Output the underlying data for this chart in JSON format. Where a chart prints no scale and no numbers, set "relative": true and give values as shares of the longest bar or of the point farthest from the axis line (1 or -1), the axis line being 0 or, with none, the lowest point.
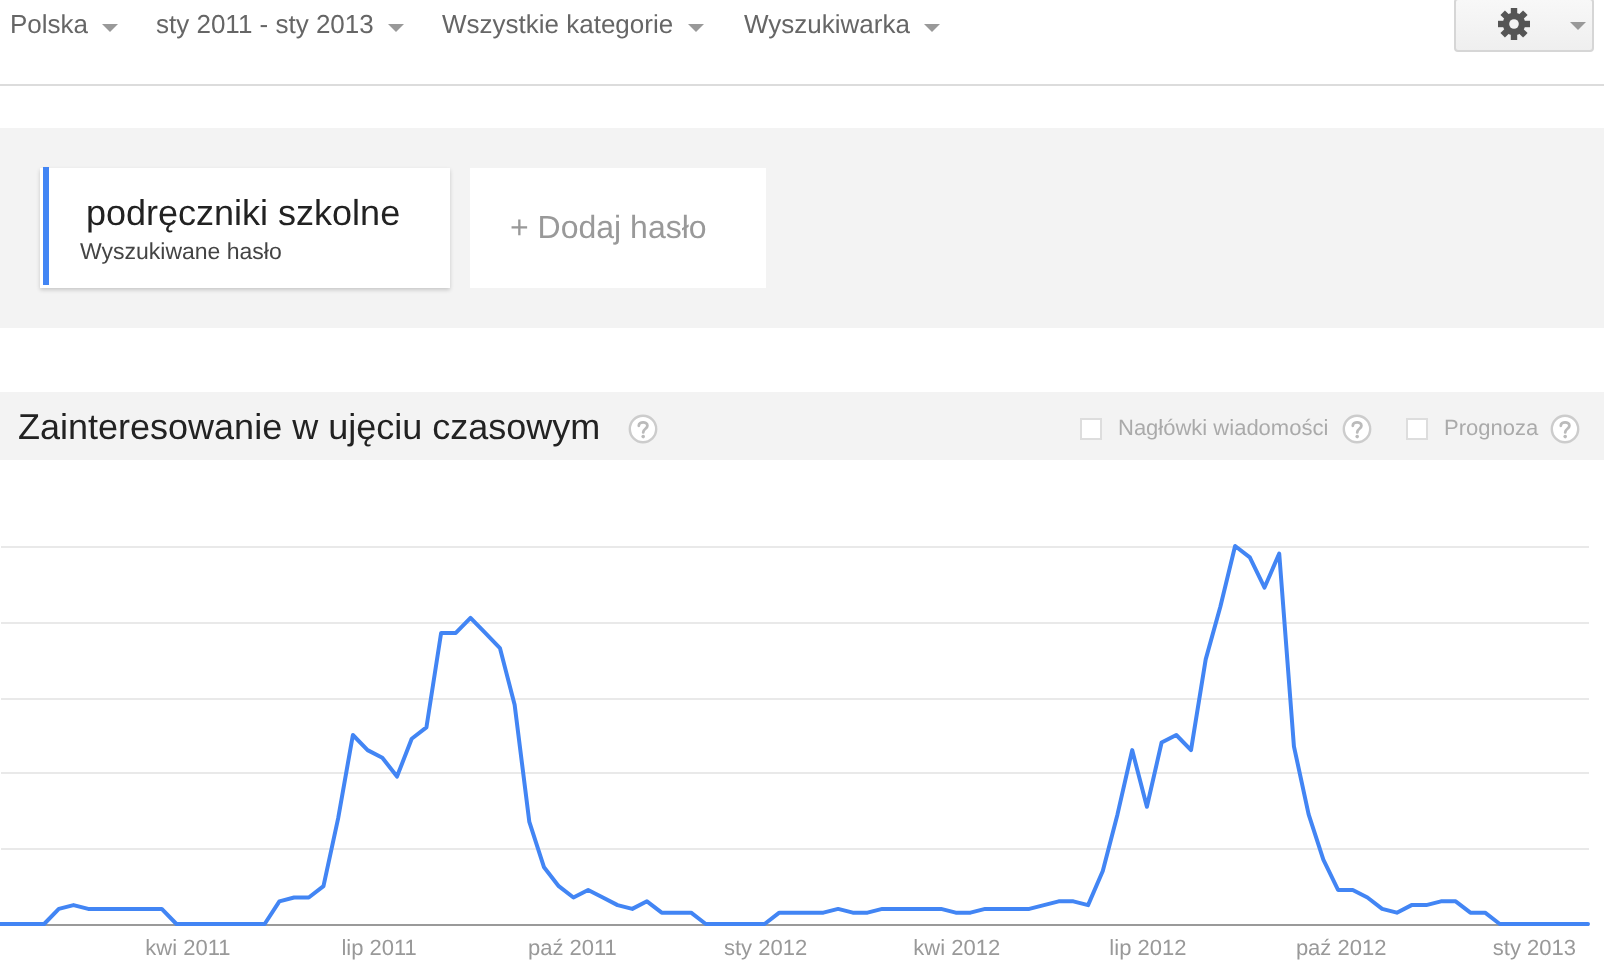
{
  "chart_data": {
    "type": "line",
    "title": "Zainteresowanie w ujęciu czasowym",
    "annotations": [
      "Polska",
      "sty 2011 - sty 2013",
      "Wszystkie kategorie",
      "Wyszukiwarka",
      "Wyszukiwane hasło",
      "+ Dodaj hasło",
      "Nagłówki wiadomości",
      "Prognoza"
    ],
    "x": [
      "2011-01-02",
      "2011-01-09",
      "2011-01-16",
      "2011-01-23",
      "2011-01-30",
      "2011-02-06",
      "2011-02-13",
      "2011-02-20",
      "2011-02-27",
      "2011-03-06",
      "2011-03-13",
      "2011-03-20",
      "2011-03-27",
      "2011-04-03",
      "2011-04-10",
      "2011-04-17",
      "2011-04-24",
      "2011-05-01",
      "2011-05-08",
      "2011-05-15",
      "2011-05-22",
      "2011-05-29",
      "2011-06-05",
      "2011-06-12",
      "2011-06-19",
      "2011-06-26",
      "2011-07-03",
      "2011-07-10",
      "2011-07-17",
      "2011-07-24",
      "2011-07-31",
      "2011-08-07",
      "2011-08-14",
      "2011-08-21",
      "2011-08-28",
      "2011-09-04",
      "2011-09-11",
      "2011-09-18",
      "2011-09-25",
      "2011-10-02",
      "2011-10-09",
      "2011-10-16",
      "2011-10-23",
      "2011-10-30",
      "2011-11-06",
      "2011-11-13",
      "2011-11-20",
      "2011-11-27",
      "2011-12-04",
      "2011-12-11",
      "2011-12-18",
      "2011-12-25",
      "2012-01-01",
      "2012-01-08",
      "2012-01-15",
      "2012-01-22",
      "2012-01-29",
      "2012-02-05",
      "2012-02-12",
      "2012-02-19",
      "2012-02-26",
      "2012-03-04",
      "2012-03-11",
      "2012-03-18",
      "2012-03-25",
      "2012-04-01",
      "2012-04-08",
      "2012-04-15",
      "2012-04-22",
      "2012-04-29",
      "2012-05-06",
      "2012-05-13",
      "2012-05-20",
      "2012-05-27",
      "2012-06-03",
      "2012-06-10",
      "2012-06-17",
      "2012-06-24",
      "2012-07-01",
      "2012-07-08",
      "2012-07-15",
      "2012-07-22",
      "2012-07-29",
      "2012-08-05",
      "2012-08-12",
      "2012-08-19",
      "2012-08-26",
      "2012-09-02",
      "2012-09-09",
      "2012-09-16",
      "2012-09-23",
      "2012-09-30",
      "2012-10-07",
      "2012-10-14",
      "2012-10-21",
      "2012-10-28",
      "2012-11-04",
      "2012-11-11",
      "2012-11-18",
      "2012-11-25",
      "2012-12-02",
      "2012-12-09",
      "2012-12-16",
      "2012-12-23",
      "2012-12-30",
      "2013-01-06",
      "2013-01-13",
      "2013-01-20",
      "2013-01-27"
    ],
    "xlim": [
      "2011-01-02",
      "2013-01-27"
    ],
    "xticks": [
      {
        "value": "2011-04",
        "label": "kwi 2011"
      },
      {
        "value": "2011-07",
        "label": "lip 2011"
      },
      {
        "value": "2011-10",
        "label": "paź 2011"
      },
      {
        "value": "2012-01",
        "label": "sty 2012"
      },
      {
        "value": "2012-04",
        "label": "kwi 2012"
      },
      {
        "value": "2012-07",
        "label": "lip 2012"
      },
      {
        "value": "2012-10",
        "label": "paź 2012"
      },
      {
        "value": "2013-01",
        "label": "sty 2013"
      }
    ],
    "relative": true,
    "grid": "y",
    "legend": "top left",
    "series": [
      {
        "name": "podręczniki szkolne",
        "color": "#4285f4",
        "values": [
          0,
          0,
          0,
          0,
          0.04,
          0.05,
          0.04,
          0.04,
          0.04,
          0.04,
          0.04,
          0.04,
          0,
          0,
          0,
          0,
          0,
          0,
          0,
          0.06,
          0.07,
          0.07,
          0.1,
          0.28,
          0.5,
          0.46,
          0.44,
          0.39,
          0.49,
          0.52,
          0.77,
          0.77,
          0.81,
          0.77,
          0.73,
          0.58,
          0.27,
          0.15,
          0.1,
          0.07,
          0.09,
          0.07,
          0.05,
          0.04,
          0.06,
          0.03,
          0.03,
          0.03,
          0,
          0,
          0,
          0,
          0,
          0.03,
          0.03,
          0.03,
          0.03,
          0.04,
          0.03,
          0.03,
          0.04,
          0.04,
          0.04,
          0.04,
          0.04,
          0.03,
          0.03,
          0.04,
          0.04,
          0.04,
          0.04,
          0.05,
          0.06,
          0.06,
          0.05,
          0.14,
          0.29,
          0.46,
          0.31,
          0.48,
          0.5,
          0.46,
          0.7,
          0.84,
          1,
          0.97,
          0.89,
          0.98,
          0.47,
          0.29,
          0.17,
          0.09,
          0.09,
          0.07,
          0.04,
          0.03,
          0.05,
          0.05,
          0.06,
          0.06,
          0.03,
          0.03,
          0,
          0,
          0,
          0,
          0,
          0,
          0
        ]
      }
    ]
  }
}
